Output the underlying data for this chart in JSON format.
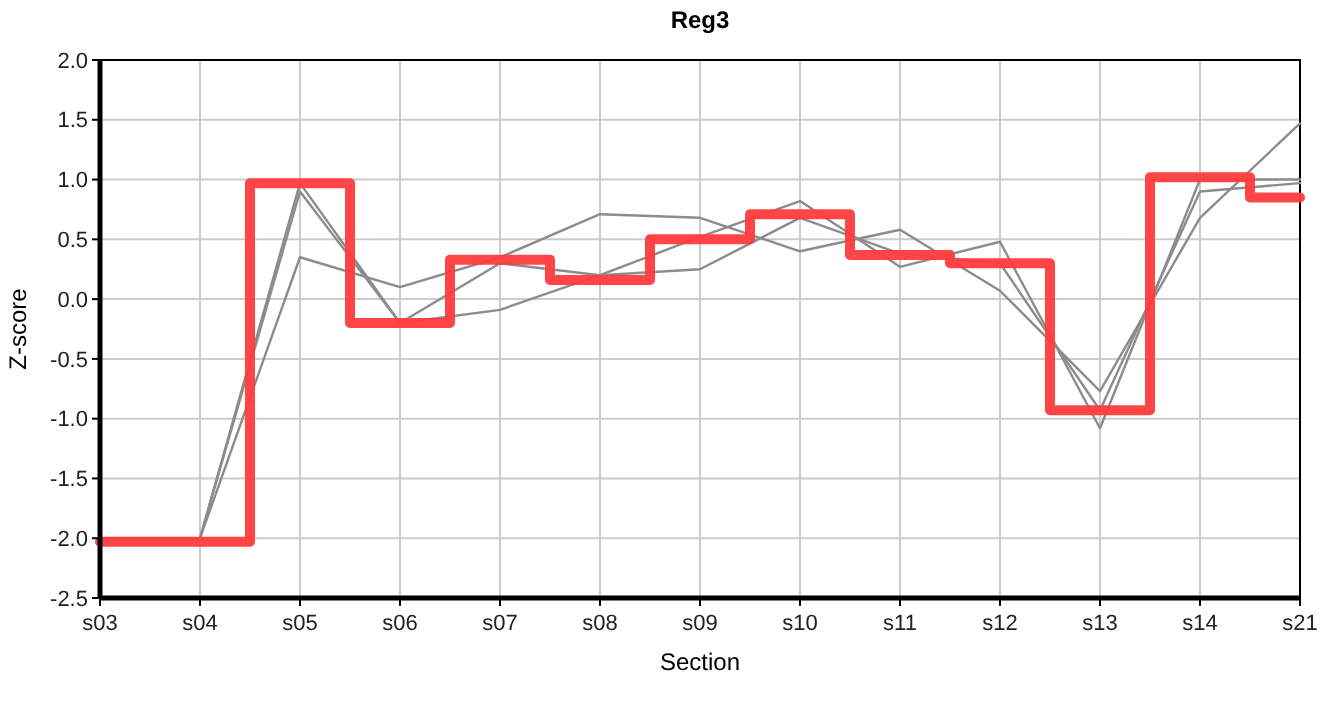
{
  "chart_data": {
    "type": "line",
    "title": "Reg3",
    "xlabel": "Section",
    "ylabel": "Z-score",
    "categories": [
      "s03",
      "s04",
      "s05",
      "s06",
      "s07",
      "s08",
      "s09",
      "s10",
      "s11",
      "s12",
      "s13",
      "s14",
      "s21"
    ],
    "series": [
      {
        "color": "#8c8c8c",
        "values": [
          -2.0,
          -2.0,
          0.35,
          0.1,
          0.35,
          0.71,
          0.68,
          0.4,
          0.58,
          0.07,
          -0.77,
          0.68,
          1.47
        ]
      },
      {
        "color": "#8c8c8c",
        "values": [
          -2.0,
          -2.0,
          0.97,
          -0.2,
          0.3,
          0.2,
          0.52,
          0.82,
          0.27,
          0.48,
          -1.08,
          1.0,
          1.0
        ]
      },
      {
        "color": "#8c8c8c",
        "values": [
          -2.0,
          -2.0,
          0.9,
          -0.2,
          -0.09,
          0.2,
          0.25,
          0.68,
          0.38,
          0.3,
          -0.93,
          0.9,
          0.97
        ]
      },
      {
        "type": "step",
        "color": "#ff3b3b",
        "values": [
          -2.03,
          -2.03,
          0.97,
          -0.2,
          0.33,
          0.16,
          0.5,
          0.71,
          0.37,
          0.3,
          -0.93,
          1.02,
          0.85
        ]
      }
    ],
    "ylim": [
      -2.5,
      2.0
    ],
    "yticks": [
      {
        "value": -2.5,
        "label": "-2.5"
      },
      {
        "value": -2.0,
        "label": "-2.0"
      },
      {
        "value": -1.5,
        "label": "-1.5"
      },
      {
        "value": -1.0,
        "label": "-1.0"
      },
      {
        "value": -0.5,
        "label": "-0.5"
      },
      {
        "value": 0,
        "label": "0.0"
      },
      {
        "value": 0.5,
        "label": "0.5"
      },
      {
        "value": 1.0,
        "label": "1.0"
      },
      {
        "value": 1.5,
        "label": "1.5"
      },
      {
        "value": 2.0,
        "label": "2.0"
      }
    ],
    "grid": true
  }
}
